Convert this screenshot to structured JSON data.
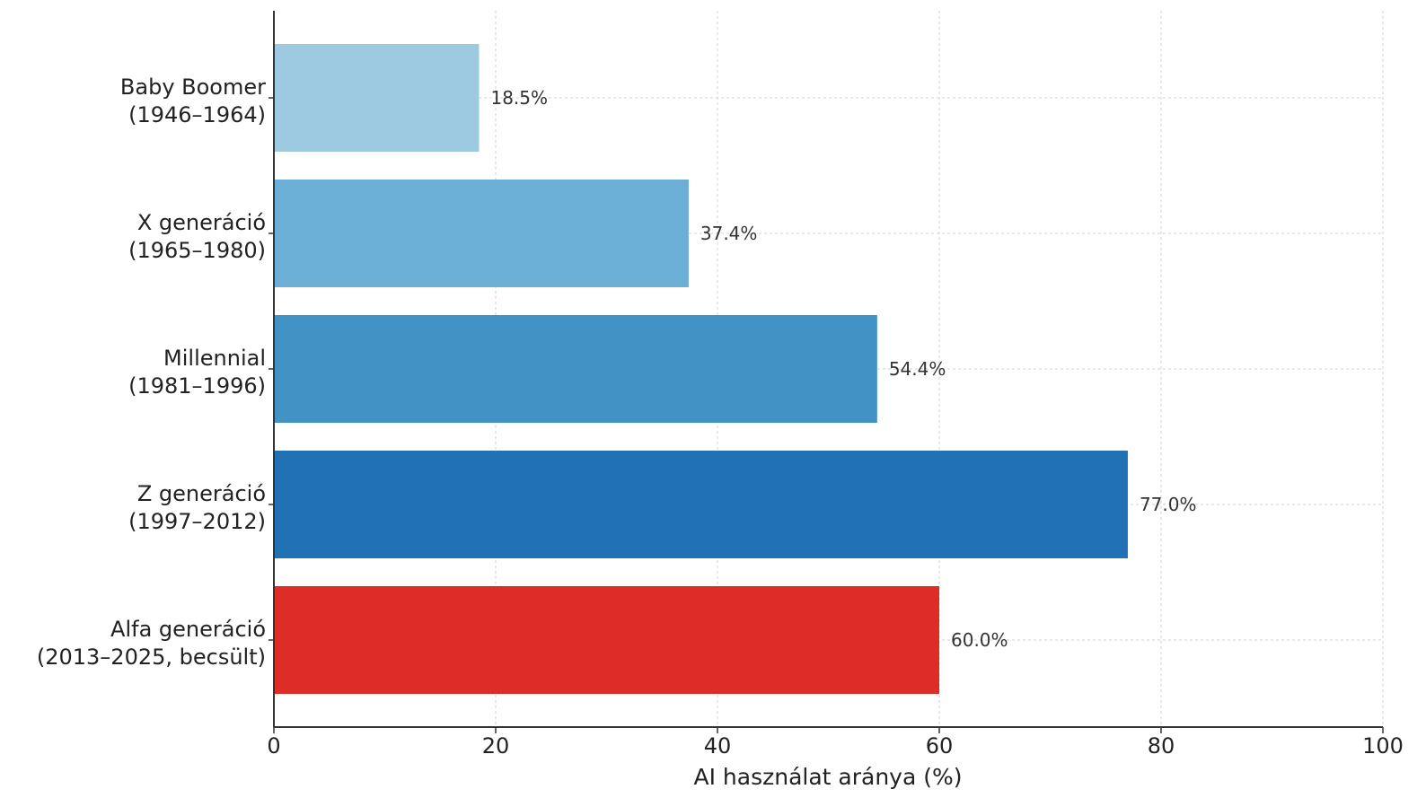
{
  "chart_data": {
    "type": "bar",
    "orientation": "horizontal",
    "categories": [
      [
        "Baby Boomer",
        "(1946–1964)"
      ],
      [
        "X generáció",
        "(1965–1980)"
      ],
      [
        "Millennial",
        "(1981–1996)"
      ],
      [
        "Z generáció",
        "(1997–2012)"
      ],
      [
        "Alfa generáció",
        "(2013–2025, becsült)"
      ]
    ],
    "values": [
      18.5,
      37.4,
      54.4,
      77.0,
      60.0
    ],
    "value_labels": [
      "18.5%",
      "37.4%",
      "54.4%",
      "77.0%",
      "60.0%"
    ],
    "colors": [
      "#9ecae1",
      "#6baed6",
      "#4292c6",
      "#2171b5",
      "#de2d26"
    ],
    "xlabel": "AI használat aránya (%)",
    "xlim": [
      0,
      100
    ],
    "xticks": [
      0,
      20,
      40,
      60,
      80,
      100
    ],
    "grid": true
  }
}
